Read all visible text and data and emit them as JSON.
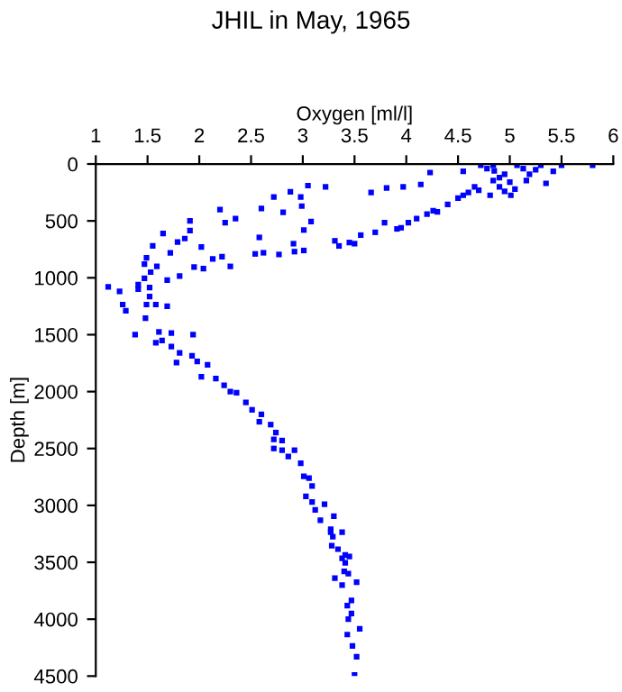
{
  "chart_data": {
    "type": "scatter",
    "title": "JHIL in May, 1965",
    "xlabel": "Oxygen [ml/l]",
    "ylabel": "Depth [m]",
    "xlim": [
      1,
      6
    ],
    "xticks": [
      1,
      1.5,
      2,
      2.5,
      3,
      3.5,
      4,
      4.5,
      5,
      5.5,
      6
    ],
    "ylim": [
      4500,
      0
    ],
    "yticks": [
      0,
      500,
      1000,
      1500,
      2000,
      2500,
      3000,
      3500,
      4000,
      4500
    ],
    "marker": "square",
    "grid": false,
    "legend": false,
    "series": [
      {
        "color": "#0000ff",
        "x": [
          4.23,
          4.14,
          3.97,
          3.81,
          3.66,
          3.22,
          3.05,
          2.88,
          2.72,
          2.98,
          2.99,
          2.81,
          2.6,
          2.35,
          2.2,
          2.25,
          1.91,
          1.91,
          1.65,
          1.86,
          1.79,
          1.55,
          1.72,
          1.49,
          1.47,
          1.59,
          1.53,
          1.47,
          1.81,
          1.69,
          1.41,
          1.12,
          1.23,
          1.41,
          1.52,
          1.52,
          1.26,
          1.29,
          1.49,
          1.58,
          1.69,
          1.48,
          2.02,
          2.13,
          1.95,
          2.04,
          2.22,
          2.3,
          2.54,
          2.62,
          2.77,
          2.92,
          3.01,
          2.91,
          3.01,
          3.08,
          2.58,
          3.31,
          3.35,
          3.5,
          3.56,
          3.79,
          3.91,
          4.02,
          4.26,
          4.4,
          4.55,
          4.66,
          4.55,
          4.72,
          4.84,
          4.95,
          5.07,
          5.19,
          5.3,
          5.42,
          5.5,
          5.8,
          4.9,
          5.01,
          4.81,
          5.16,
          4.84,
          4.78,
          5.13,
          4.9,
          5.0,
          4.95,
          5.05,
          4.85,
          5.25,
          5.35,
          4.7,
          4.6,
          4.5,
          4.3,
          4.2,
          4.1,
          3.95,
          3.7,
          3.45,
          1.38,
          1.61,
          1.64,
          1.73,
          1.94,
          1.58,
          1.73,
          1.81,
          1.93,
          1.78,
          1.98,
          2.08,
          2.02,
          2.16,
          2.24,
          2.36,
          2.3,
          2.45,
          2.51,
          2.6,
          2.58,
          2.69,
          2.74,
          2.72,
          2.8,
          2.72,
          2.8,
          2.86,
          2.92,
          2.98,
          3.01,
          3.06,
          3.09,
          3.03,
          3.09,
          3.21,
          3.12,
          3.17,
          3.3,
          3.27,
          3.38,
          3.27,
          3.29,
          3.28,
          3.34,
          3.38,
          3.41,
          3.45,
          3.41,
          3.4,
          3.44,
          3.31,
          3.38,
          3.52,
          3.47,
          3.43,
          3.47,
          3.44,
          3.55,
          3.43,
          3.48,
          3.52,
          3.5
        ],
        "values": [
          75,
          180,
          200,
          210,
          250,
          200,
          190,
          245,
          290,
          290,
          370,
          425,
          390,
          480,
          400,
          515,
          500,
          585,
          610,
          655,
          685,
          720,
          780,
          825,
          880,
          900,
          950,
          1005,
          985,
          1020,
          1060,
          1080,
          1120,
          1100,
          1085,
          1165,
          1235,
          1290,
          1235,
          1235,
          1250,
          1355,
          730,
          835,
          905,
          920,
          815,
          900,
          790,
          780,
          795,
          770,
          760,
          700,
          580,
          505,
          645,
          675,
          720,
          700,
          625,
          515,
          570,
          515,
          410,
          355,
          275,
          200,
          65,
          10,
          10,
          90,
          10,
          90,
          10,
          65,
          10,
          10,
          200,
          275,
          275,
          145,
          145,
          40,
          40,
          120,
          160,
          240,
          220,
          60,
          50,
          170,
          230,
          250,
          300,
          420,
          440,
          480,
          560,
          600,
          690,
          1500,
          1475,
          1550,
          1485,
          1500,
          1570,
          1605,
          1660,
          1685,
          1745,
          1735,
          1765,
          1870,
          1885,
          1945,
          2010,
          2000,
          2095,
          2160,
          2200,
          2265,
          2290,
          2360,
          2420,
          2430,
          2500,
          2515,
          2570,
          2515,
          2630,
          2745,
          2760,
          2830,
          2920,
          2970,
          2990,
          3040,
          3130,
          3095,
          3235,
          3235,
          3210,
          3275,
          3355,
          3385,
          3465,
          3435,
          3450,
          3505,
          3580,
          3600,
          3640,
          3700,
          3675,
          3835,
          3880,
          3950,
          4000,
          4085,
          4135,
          4235,
          4330,
          4490
        ]
      }
    ]
  }
}
